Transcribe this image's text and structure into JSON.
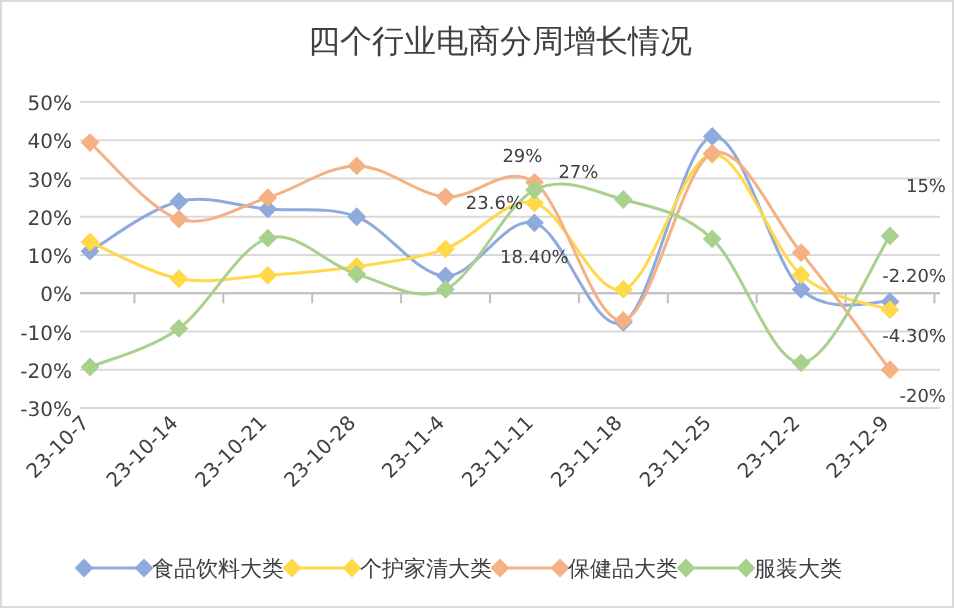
{
  "chart_data": {
    "type": "line",
    "title": "四个行业电商分周增长情况",
    "categories": [
      "23-10-7",
      "23-10-14",
      "23-10-21",
      "23-10-28",
      "23-11-4",
      "23-11-11",
      "23-11-18",
      "23-11-25",
      "23-12-2",
      "23-12-9"
    ],
    "series": [
      {
        "name": "食品饮料大类",
        "color": "#8faadc",
        "values": [
          11,
          24,
          22,
          20,
          4.5,
          18.4,
          -7.6,
          41,
          1,
          -2.2
        ],
        "value_labels": [
          null,
          null,
          null,
          null,
          null,
          "18.40%",
          null,
          null,
          null,
          "-2.20%"
        ]
      },
      {
        "name": "个护家清大类",
        "color": "#ffd94a",
        "values": [
          13.4,
          3.8,
          4.7,
          7,
          11.6,
          23.6,
          1,
          36.3,
          4.8,
          -4.3
        ],
        "value_labels": [
          null,
          null,
          null,
          null,
          null,
          "23.6%",
          null,
          null,
          null,
          "-4.30%"
        ]
      },
      {
        "name": "保健品大类",
        "color": "#f4b183",
        "values": [
          39.4,
          19.4,
          25,
          33.3,
          25.2,
          29,
          -7.1,
          36.6,
          10.6,
          -20
        ],
        "value_labels": [
          null,
          null,
          null,
          null,
          null,
          "29%",
          null,
          null,
          null,
          "-20%"
        ]
      },
      {
        "name": "服装大类",
        "color": "#a9d18e",
        "values": [
          -19.3,
          -9.2,
          14.4,
          5,
          1,
          27,
          24.5,
          14.2,
          -18.2,
          15
        ],
        "value_labels": [
          null,
          null,
          null,
          null,
          null,
          "27%",
          null,
          null,
          null,
          "15%"
        ]
      }
    ],
    "ylim": [
      -30,
      50
    ],
    "yticks": [
      {
        "value": -30,
        "label": "-30%"
      },
      {
        "value": -20,
        "label": "-20%"
      },
      {
        "value": -10,
        "label": "-10%"
      },
      {
        "value": 0,
        "label": "0%"
      },
      {
        "value": 10,
        "label": "10%"
      },
      {
        "value": 20,
        "label": "20%"
      },
      {
        "value": 30,
        "label": "30%"
      },
      {
        "value": 40,
        "label": "40%"
      },
      {
        "value": 50,
        "label": "50%"
      }
    ],
    "grid": "y",
    "legend": "bottom",
    "marker": "diamond",
    "line_style": "solid"
  }
}
